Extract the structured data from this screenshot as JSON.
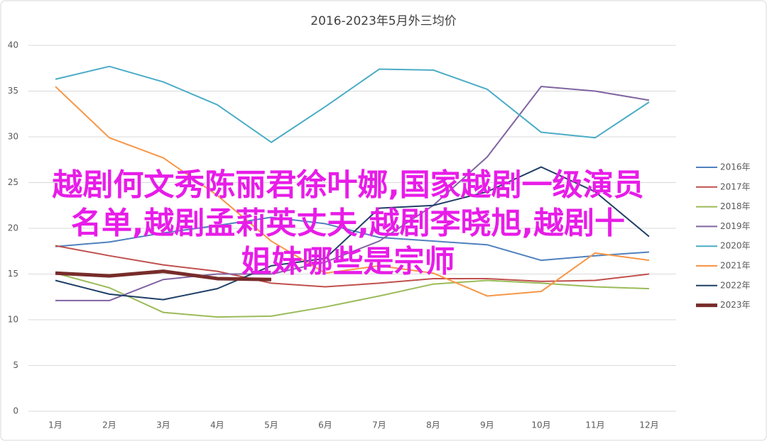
{
  "chart_data": {
    "type": "line",
    "title": "2016-2023年5月外三均价",
    "categories": [
      "1月",
      "2月",
      "3月",
      "4月",
      "5月",
      "6月",
      "7月",
      "8月",
      "9月",
      "10月",
      "11月",
      "12月"
    ],
    "ylim": [
      0,
      40
    ],
    "yticks": [
      0,
      5,
      10,
      15,
      20,
      25,
      30,
      35,
      40
    ],
    "grid": true,
    "legend": "right",
    "series": [
      {
        "name": "2016年",
        "color": "#4f81bd",
        "width": 2,
        "values": [
          18.0,
          18.5,
          19.5,
          20.3,
          21.2,
          20.5,
          19.0,
          18.6,
          18.2,
          16.5,
          17.0,
          17.4
        ]
      },
      {
        "name": "2017年",
        "color": "#c0504d",
        "width": 2,
        "values": [
          18.1,
          17.0,
          16.0,
          15.3,
          14.0,
          13.6,
          14.0,
          14.5,
          14.5,
          14.2,
          14.3,
          15.0
        ]
      },
      {
        "name": "2018年",
        "color": "#9bbb59",
        "width": 2,
        "values": [
          15.1,
          13.5,
          10.8,
          10.3,
          10.4,
          11.4,
          12.6,
          13.9,
          14.3,
          14.0,
          13.6,
          13.4
        ]
      },
      {
        "name": "2019年",
        "color": "#8064a2",
        "width": 2,
        "values": [
          12.1,
          12.1,
          14.4,
          15.0,
          15.0,
          16.3,
          18.6,
          22.5,
          27.8,
          35.5,
          35.0,
          34.0
        ]
      },
      {
        "name": "2020年",
        "color": "#4bacc6",
        "width": 2,
        "values": [
          36.3,
          37.7,
          36.0,
          33.5,
          29.4,
          33.3,
          37.4,
          37.3,
          35.2,
          30.5,
          29.9,
          33.8
        ]
      },
      {
        "name": "2021年",
        "color": "#f79646",
        "width": 2,
        "values": [
          35.5,
          29.9,
          27.7,
          23.6,
          18.6,
          15.1,
          15.9,
          15.1,
          12.6,
          13.1,
          17.3,
          16.5
        ]
      },
      {
        "name": "2022年",
        "color": "#1f3f66",
        "width": 2,
        "values": [
          14.3,
          12.8,
          12.2,
          13.4,
          15.9,
          16.7,
          22.2,
          22.5,
          24.0,
          26.7,
          24.0,
          19.1
        ]
      },
      {
        "name": "2023年",
        "color": "#772c2a",
        "width": 5,
        "values": [
          15.1,
          14.8,
          15.3,
          14.5,
          14.4,
          null,
          null,
          null,
          null,
          null,
          null,
          null
        ]
      }
    ],
    "overlay": [
      "越剧何文秀陈丽君徐叶娜,国家越剧一级演员",
      "名单,越剧孟莉英丈夫,越剧李晓旭,越剧十",
      "姐妹哪些是宗师"
    ]
  }
}
